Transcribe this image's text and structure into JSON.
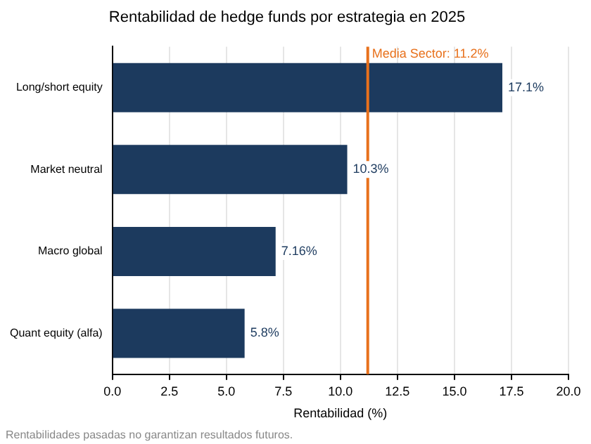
{
  "chart_data": {
    "type": "bar",
    "orientation": "horizontal",
    "title": "Rentabilidad de hedge funds por estrategia en 2025",
    "xlabel": "Rentabilidad (%)",
    "categories": [
      "Long/short equity",
      "Market neutral",
      "Macro global",
      "Quant equity (alfa)"
    ],
    "values": [
      17.1,
      10.3,
      7.16,
      5.8
    ],
    "color": "#1c3a5e",
    "value_labels": [
      "17.1%",
      "10.3%",
      "7.16%",
      "5.8%"
    ],
    "xlim": [
      0,
      20
    ],
    "xticks": [
      {
        "value": 0,
        "label": "0.0"
      },
      {
        "value": 2.5,
        "label": "2.5"
      },
      {
        "value": 5,
        "label": "5.0"
      },
      {
        "value": 7.5,
        "label": "7.5"
      },
      {
        "value": 10,
        "label": "10.0"
      },
      {
        "value": 12.5,
        "label": "12.5"
      },
      {
        "value": 15,
        "label": "15.0"
      },
      {
        "value": 17.5,
        "label": "17.5"
      },
      {
        "value": 20,
        "label": "20.0"
      }
    ],
    "grid": "x",
    "ref_lines": [
      {
        "axis": "x",
        "value": 11.2,
        "label": "Media Sector: 11.2%",
        "color": "#e8711c"
      }
    ],
    "annotations": [
      "Rentabilidades pasadas no garantizan resultados futuros."
    ]
  }
}
